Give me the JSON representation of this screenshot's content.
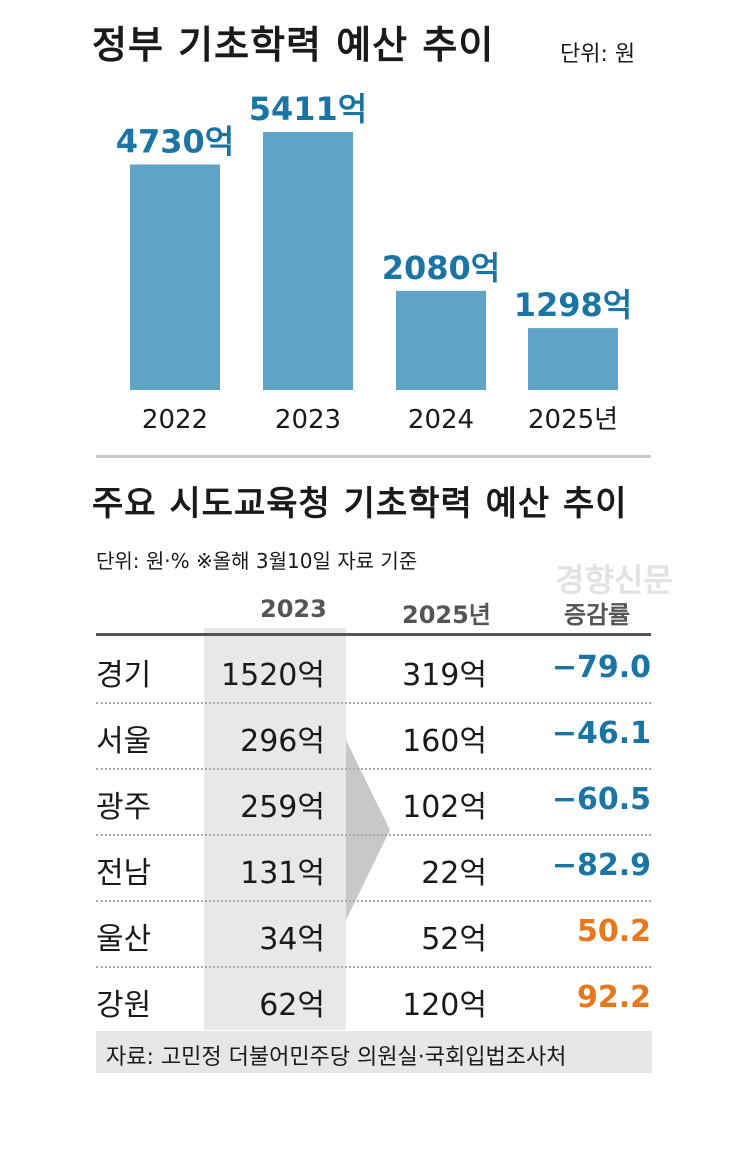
{
  "chart_title": "정부 기초학력 예산 추이",
  "chart_unit": "단위: 원",
  "chart_data": [
    {
      "type": "bar",
      "title": "정부 기초학력 예산 추이",
      "categories": [
        "2022",
        "2023",
        "2024",
        "2025년"
      ],
      "values": [
        4730,
        5411,
        2080,
        1298
      ],
      "value_labels": [
        "4730억",
        "5411억",
        "2080억",
        "1298억"
      ],
      "ylim": [
        0,
        5411
      ],
      "grid": false,
      "colors": {
        "bar": "#5fa3c6",
        "value_label": "#1b75a4"
      }
    },
    {
      "type": "table",
      "title": "주요 시도교육청 기초학력 예산 추이",
      "columns": [
        "",
        "2023",
        "2025년",
        "증감률"
      ],
      "rows": [
        {
          "region": "경기",
          "y2023": "1520억",
          "y2025": "319억",
          "rate": "−79.0"
        },
        {
          "region": "서울",
          "y2023": "296억",
          "y2025": "160억",
          "rate": "−46.1"
        },
        {
          "region": "광주",
          "y2023": "259억",
          "y2025": "102억",
          "rate": "−60.5"
        },
        {
          "region": "전남",
          "y2023": "131억",
          "y2025": "22억",
          "rate": "−82.9"
        },
        {
          "region": "울산",
          "y2023": "34억",
          "y2025": "52억",
          "rate": "50.2"
        },
        {
          "region": "강원",
          "y2023": "62억",
          "y2025": "120억",
          "rate": "92.2"
        }
      ],
      "colors": {
        "negative": "#1b75a4",
        "positive": "#e8761a",
        "shade": "#e8e8e8",
        "arrow": "#c8c8c8"
      }
    }
  ],
  "table_title": "주요 시도교육청 기초학력 예산 추이",
  "table_unit": "단위: 원·% ※올해 3월10일 자료 기준",
  "watermark": "경향신문",
  "source": "자료: 고민정 더불어민주당 의원실·국회입법조사처"
}
